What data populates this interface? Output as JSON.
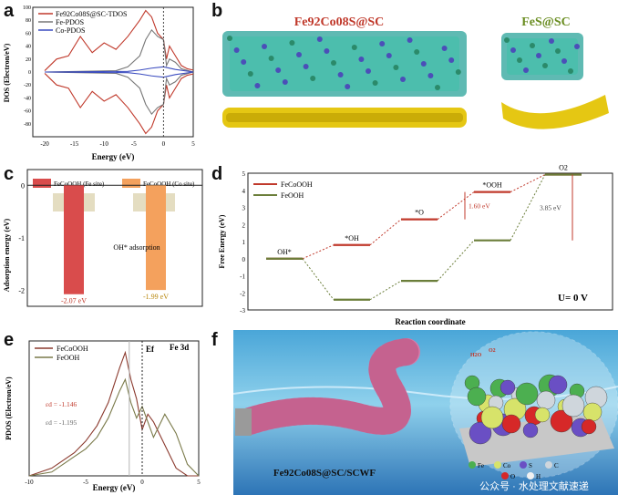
{
  "panels": {
    "a": {
      "label": "a",
      "legend": [
        "Fe92Co08S@SC-TDOS",
        "Fe-PDOS",
        "Co-PDOS"
      ],
      "xlabel": "Energy (eV)",
      "ylabel": "DOS (Electron/eV)"
    },
    "b": {
      "label": "b",
      "title_left": "Fe92Co08S@SC",
      "title_right": "FeS@SC"
    },
    "c": {
      "label": "c",
      "legend": [
        "FeCoOOH (Fe site)",
        "FeCoOOH (Co site)"
      ],
      "ylabel": "Adsorption energy (eV)",
      "annotation": "OH* adsorption"
    },
    "d": {
      "label": "d",
      "legend": [
        "FeCoOOH",
        "FeOOH"
      ],
      "ylabel": "Free Energy (eV)",
      "xlabel": "Reaction coordinate",
      "condition": "U= 0 V",
      "species": [
        "OH*",
        "*OH",
        "*O",
        "*OOH",
        "O2"
      ],
      "gap1": "1.60 eV",
      "gap2": "3.85 eV"
    },
    "e": {
      "label": "e",
      "legend": [
        "FeCoOOH",
        "FeOOH"
      ],
      "title": "Fe 3d",
      "ef_label": "Ef",
      "xlabel": "Energy (eV)",
      "ylabel": "PDOS (Electron/eV)",
      "ed1": "εd = -1.146",
      "ed2": "εd = -1.195"
    },
    "f": {
      "label": "f",
      "caption": "Fe92Co08S@SC/SCWF",
      "watermark": "公众号 · 水处理文献速递",
      "elements": [
        "Fe",
        "Co",
        "S",
        "C",
        "O",
        "H"
      ],
      "tags": [
        "H2O",
        "O2",
        "OH",
        "OH"
      ]
    }
  },
  "chart_data": [
    {
      "type": "line",
      "id": "a",
      "series": [
        {
          "name": "Fe92Co08S@SC-TDOS",
          "x": [
            -20,
            -18,
            -16,
            -14,
            -12,
            -10,
            -8,
            -6,
            -4,
            -3,
            -2,
            -1,
            0,
            0.5,
            1,
            2,
            3,
            4,
            5
          ],
          "y": [
            2,
            20,
            25,
            55,
            30,
            45,
            35,
            55,
            80,
            95,
            85,
            60,
            50,
            20,
            40,
            25,
            10,
            5,
            3
          ]
        },
        {
          "name": "Fe-PDOS",
          "x": [
            -20,
            -8,
            -6,
            -4,
            -3,
            -2,
            -1,
            0,
            0.5,
            1,
            2,
            3,
            5
          ],
          "y": [
            0,
            2,
            8,
            25,
            50,
            65,
            55,
            50,
            10,
            20,
            15,
            5,
            0
          ]
        },
        {
          "name": "Co-PDOS",
          "x": [
            -20,
            -6,
            -4,
            -2,
            0,
            2,
            5
          ],
          "y": [
            0,
            1,
            3,
            6,
            8,
            4,
            0
          ]
        }
      ],
      "xlabel": "Energy (eV)",
      "ylabel": "DOS (Electron/eV)",
      "xlim": [
        -22,
        5
      ],
      "ylim": [
        -100,
        100
      ],
      "xticks": [
        -20,
        -15,
        -10,
        -5,
        0,
        5
      ],
      "yticks": [
        -80,
        -60,
        -40,
        -20,
        0,
        20,
        40,
        60,
        80,
        100
      ]
    },
    {
      "type": "bar",
      "id": "c",
      "categories": [
        "FeCoOOH (Fe site)",
        "FeCoOOH (Co site)"
      ],
      "values": [
        -2.07,
        -1.99
      ],
      "labels": [
        "-2.07 eV",
        "-1.99 eV"
      ],
      "ylabel": "Adsorption energy (eV)",
      "ylim": [
        -2.3,
        0.3
      ],
      "yticks": [
        -2,
        -1,
        0
      ]
    },
    {
      "type": "line",
      "id": "d",
      "categories": [
        "OH*",
        "*OH",
        "*O",
        "*OOH",
        "O2"
      ],
      "series": [
        {
          "name": "FeCoOOH",
          "values": [
            0,
            0.8,
            2.3,
            3.9,
            4.92
          ]
        },
        {
          "name": "FeOOH",
          "values": [
            0,
            -2.4,
            -1.3,
            1.07,
            4.92
          ]
        }
      ],
      "ylabel": "Free Energy (eV)",
      "xlabel": "Reaction coordinate",
      "ylim": [
        -3,
        5
      ],
      "yticks": [
        -3,
        -2,
        -1,
        0,
        1,
        2,
        3,
        4,
        5
      ]
    },
    {
      "type": "line",
      "id": "e",
      "series": [
        {
          "name": "FeCoOOH",
          "x": [
            -10,
            -8,
            -7,
            -6,
            -5,
            -4,
            -3,
            -2,
            -1.5,
            -1,
            -0.5,
            0,
            0.5,
            1,
            2,
            3,
            4,
            5
          ],
          "y": [
            0,
            0.2,
            0.4,
            0.6,
            0.9,
            1.3,
            1.9,
            2.8,
            3.2,
            2.5,
            2,
            1.2,
            1.6,
            1.4,
            0.8,
            0.2,
            0,
            0
          ]
        },
        {
          "name": "FeOOH",
          "x": [
            -10,
            -8,
            -7,
            -6,
            -5,
            -4,
            -3,
            -2,
            -1.5,
            -1,
            -0.5,
            0,
            0.5,
            1,
            2,
            3,
            4,
            5
          ],
          "y": [
            0,
            0.1,
            0.3,
            0.5,
            0.7,
            1,
            1.5,
            2.2,
            2.5,
            1.9,
            1.5,
            1.8,
            1.4,
            1,
            1.6,
            1.1,
            0.3,
            0
          ]
        }
      ],
      "title": "Fe 3d",
      "xlabel": "Energy (eV)",
      "ylabel": "PDOS (Electron/eV)",
      "xlim": [
        -10,
        5
      ],
      "ylim": [
        0,
        3.5
      ],
      "xticks": [
        -10,
        -5,
        0,
        5
      ]
    }
  ]
}
